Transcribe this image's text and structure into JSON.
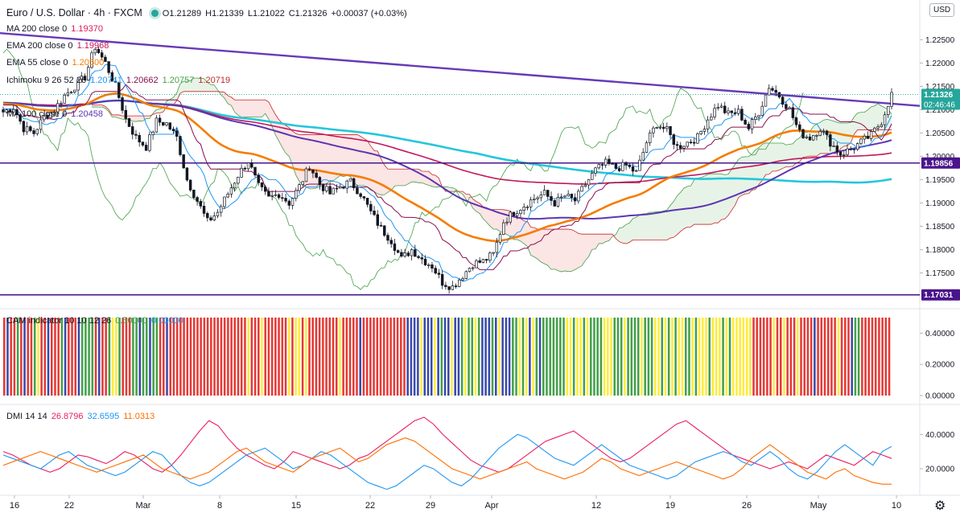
{
  "header": {
    "symbol": "Euro / U.S. Dollar · 4h · FXCM",
    "o": "O1.21289",
    "h": "H1.21339",
    "l": "L1.21022",
    "c": "C1.21326",
    "change": "+0.00037 (+0.03%)",
    "currency": "USD"
  },
  "legend": [
    {
      "label": "MA 200 close 0",
      "value": "1.19370",
      "color": "#d81b60"
    },
    {
      "label": "EMA 200 close 0",
      "value": "1.19968",
      "color": "#c2185b"
    },
    {
      "label": "EMA 55 close 0",
      "value": "1.20500",
      "color": "#f57c00"
    },
    {
      "label": "Ichimoku 9 26 52 26",
      "values": [
        "1.20741",
        "1.20662",
        "1.20757",
        "1.20719"
      ],
      "colors": [
        "#2196f3",
        "#880e4f",
        "#43a047",
        "#c62828"
      ]
    },
    {
      "label": "MA 100 close 0",
      "value": "1.20458",
      "color": "#5e35b1"
    }
  ],
  "cam_legend": {
    "label": "CAM indicator 10 10 12 26",
    "v1": "0.50000",
    "v2": "0.00000",
    "c1": "#43a047",
    "c2": "#2196f3"
  },
  "dmi_legend": {
    "label": "DMI 14 14",
    "v1": "26.8796",
    "v2": "32.6595",
    "v3": "11.0313",
    "c1": "#e91e63",
    "c2": "#2196f3",
    "c3": "#ff6d00"
  },
  "price_tags": {
    "last": "1.21326",
    "countdown": "02:46:46",
    "support_1": "1.19856",
    "support_2": "1.17031"
  },
  "chart_data": [
    {
      "type": "candlestick",
      "title": "Euro / U.S. Dollar · 4h · FXCM",
      "ylim": [
        1.1675,
        1.2335
      ],
      "y_ticks": [
        "1.22500",
        "1.22000",
        "1.21500",
        "1.21000",
        "1.20500",
        "1.20000",
        "1.19500",
        "1.19000",
        "1.18500",
        "1.18000",
        "1.17500"
      ],
      "y_tick_values": [
        1.225,
        1.22,
        1.215,
        1.21,
        1.205,
        1.2,
        1.195,
        1.19,
        1.185,
        1.18,
        1.175
      ],
      "x_ticks": [
        "16",
        "22",
        "Mar",
        "8",
        "15",
        "22",
        "29",
        "Apr",
        "12",
        "19",
        "26",
        "May",
        "10"
      ],
      "close_path": [
        [
          0,
          1.2095
        ],
        [
          3,
          1.2105
        ],
        [
          6,
          1.206
        ],
        [
          9,
          1.205
        ],
        [
          12,
          1.2085
        ],
        [
          15,
          1.21
        ],
        [
          18,
          1.213
        ],
        [
          21,
          1.215
        ],
        [
          24,
          1.217
        ],
        [
          27,
          1.2235
        ],
        [
          30,
          1.22
        ],
        [
          33,
          1.215
        ],
        [
          36,
          1.208
        ],
        [
          39,
          1.204
        ],
        [
          42,
          1.202
        ],
        [
          45,
          1.2075
        ],
        [
          48,
          1.207
        ],
        [
          51,
          1.204
        ],
        [
          54,
          1.195
        ],
        [
          57,
          1.1905
        ],
        [
          60,
          1.186
        ],
        [
          63,
          1.188
        ],
        [
          66,
          1.192
        ],
        [
          69,
          1.196
        ],
        [
          72,
          1.199
        ],
        [
          75,
          1.1935
        ],
        [
          78,
          1.191
        ],
        [
          81,
          1.192
        ],
        [
          84,
          1.19
        ],
        [
          87,
          1.1935
        ],
        [
          90,
          1.198
        ],
        [
          93,
          1.194
        ],
        [
          96,
          1.192
        ],
        [
          99,
          1.1935
        ],
        [
          102,
          1.1945
        ],
        [
          105,
          1.192
        ],
        [
          108,
          1.188
        ],
        [
          111,
          1.1845
        ],
        [
          114,
          1.182
        ],
        [
          117,
          1.178
        ],
        [
          120,
          1.18
        ],
        [
          123,
          1.178
        ],
        [
          126,
          1.1765
        ],
        [
          129,
          1.173
        ],
        [
          132,
          1.172
        ],
        [
          135,
          1.1745
        ],
        [
          138,
          1.177
        ],
        [
          141,
          1.1775
        ],
        [
          144,
          1.179
        ],
        [
          147,
          1.186
        ],
        [
          150,
          1.188
        ],
        [
          153,
          1.1895
        ],
        [
          156,
          1.191
        ],
        [
          159,
          1.192
        ],
        [
          162,
          1.19
        ],
        [
          165,
          1.1915
        ],
        [
          168,
          1.1905
        ],
        [
          171,
          1.194
        ],
        [
          174,
          1.197
        ],
        [
          177,
          1.1985
        ],
        [
          180,
          1.1975
        ],
        [
          183,
          1.198
        ],
        [
          186,
          1.1965
        ],
        [
          189,
          1.203
        ],
        [
          192,
          1.207
        ],
        [
          195,
          1.2055
        ],
        [
          198,
          1.202
        ],
        [
          201,
          1.203
        ],
        [
          204,
          1.204
        ],
        [
          207,
          1.208
        ],
        [
          210,
          1.211
        ],
        [
          213,
          1.209
        ],
        [
          216,
          1.2095
        ],
        [
          219,
          1.206
        ],
        [
          222,
          1.2095
        ],
        [
          225,
          1.215
        ],
        [
          228,
          1.213
        ],
        [
          231,
          1.21
        ],
        [
          234,
          1.205
        ],
        [
          237,
          1.204
        ],
        [
          240,
          1.206
        ],
        [
          243,
          1.203
        ],
        [
          246,
          1.2005
        ],
        [
          249,
          1.2015
        ],
        [
          252,
          1.203
        ],
        [
          255,
          1.2045
        ],
        [
          258,
          1.2075
        ],
        [
          261,
          1.2133
        ]
      ],
      "n_bars": 262,
      "horizontal_levels": [
        1.19856,
        1.17031
      ],
      "trendline": [
        [
          1.2264,
          1.2108
        ]
      ]
    },
    {
      "type": "bar",
      "title": "CAM indicator 10 10 12 26",
      "y_ticks": [
        "0.40000",
        "0.20000",
        "0.00000"
      ],
      "y_tick_values": [
        0.4,
        0.2,
        0.0
      ],
      "ylim": [
        0,
        0.5
      ],
      "colors": {
        "G": "#43a047",
        "R": "#e53935",
        "B": "#3949ab",
        "Y": "#ffeb3b"
      },
      "pattern": "RBRRGRBRRGYRRBRRRGBRRRBGGGGRBRRGYYGRRRGGBGGBGGRRBRRRRRRRRRRRRRRRRRRRRRRRYRRRYRRRRRRRYRYYRYRRRRRRRRRYRRRRRBRRRRRRRRRRRRRBBBBYBBBYBGBBYBBGYGGYGBBBGBYBBBGGYGYBYGBGGGGGGGYYGYYGYGGGGYYYGGGYGGGGYGGGYYGYGYGYYGGYGYYYGYYYGYGYYYYYYRRRRRRYRRYRRRYRRRRBRRRRRRYRRRBGGRRRRRRRRR"
    },
    {
      "type": "line",
      "title": "DMI 14 14",
      "y_ticks": [
        "40.0000",
        "20.0000"
      ],
      "y_tick_values": [
        40,
        20
      ],
      "ylim": [
        5,
        57
      ],
      "series": [
        {
          "name": "",
          "color": "#e91e63",
          "values": [
            30,
            28,
            25,
            22,
            20,
            18,
            20,
            24,
            28,
            27,
            25,
            23,
            26,
            30,
            28,
            24,
            20,
            18,
            22,
            28,
            35,
            42,
            48,
            45,
            38,
            32,
            28,
            25,
            22,
            20,
            24,
            30,
            28,
            26,
            24,
            22,
            20,
            22,
            26,
            28,
            32,
            36,
            40,
            44,
            48,
            50,
            46,
            40,
            35,
            30,
            25,
            22,
            20,
            18,
            20,
            24,
            28,
            32,
            36,
            38,
            40,
            42,
            38,
            34,
            30,
            26,
            24,
            26,
            30,
            34,
            38,
            42,
            46,
            48,
            44,
            40,
            36,
            32,
            28,
            26,
            24,
            22,
            20,
            22,
            24,
            22,
            20,
            24,
            28,
            26,
            24,
            22,
            26,
            30,
            28,
            26
          ]
        },
        {
          "name": "",
          "color": "#2196f3",
          "values": [
            28,
            26,
            24,
            22,
            20,
            24,
            28,
            30,
            26,
            22,
            20,
            18,
            16,
            18,
            22,
            26,
            30,
            28,
            22,
            16,
            12,
            10,
            12,
            16,
            20,
            24,
            28,
            30,
            32,
            28,
            24,
            20,
            22,
            26,
            30,
            28,
            24,
            20,
            16,
            12,
            10,
            8,
            10,
            14,
            18,
            22,
            20,
            16,
            12,
            10,
            14,
            20,
            26,
            32,
            36,
            40,
            38,
            34,
            30,
            26,
            24,
            22,
            26,
            30,
            34,
            30,
            26,
            22,
            20,
            18,
            16,
            14,
            16,
            20,
            24,
            26,
            28,
            30,
            28,
            24,
            22,
            26,
            30,
            26,
            20,
            16,
            14,
            18,
            24,
            30,
            34,
            30,
            26,
            22,
            30,
            33
          ]
        },
        {
          "name": "",
          "color": "#ff6d00",
          "values": [
            22,
            24,
            26,
            28,
            30,
            28,
            26,
            24,
            22,
            20,
            18,
            20,
            22,
            24,
            26,
            28,
            24,
            20,
            18,
            16,
            14,
            16,
            18,
            22,
            26,
            30,
            32,
            28,
            24,
            22,
            20,
            18,
            22,
            26,
            28,
            30,
            32,
            28,
            24,
            26,
            30,
            34,
            36,
            38,
            36,
            32,
            28,
            24,
            20,
            18,
            16,
            14,
            16,
            18,
            20,
            22,
            24,
            20,
            18,
            16,
            14,
            16,
            18,
            22,
            26,
            24,
            20,
            18,
            16,
            18,
            20,
            22,
            24,
            22,
            20,
            18,
            16,
            14,
            16,
            20,
            26,
            30,
            34,
            30,
            26,
            22,
            18,
            16,
            14,
            18,
            20,
            16,
            14,
            12,
            11,
            11
          ]
        }
      ]
    }
  ]
}
